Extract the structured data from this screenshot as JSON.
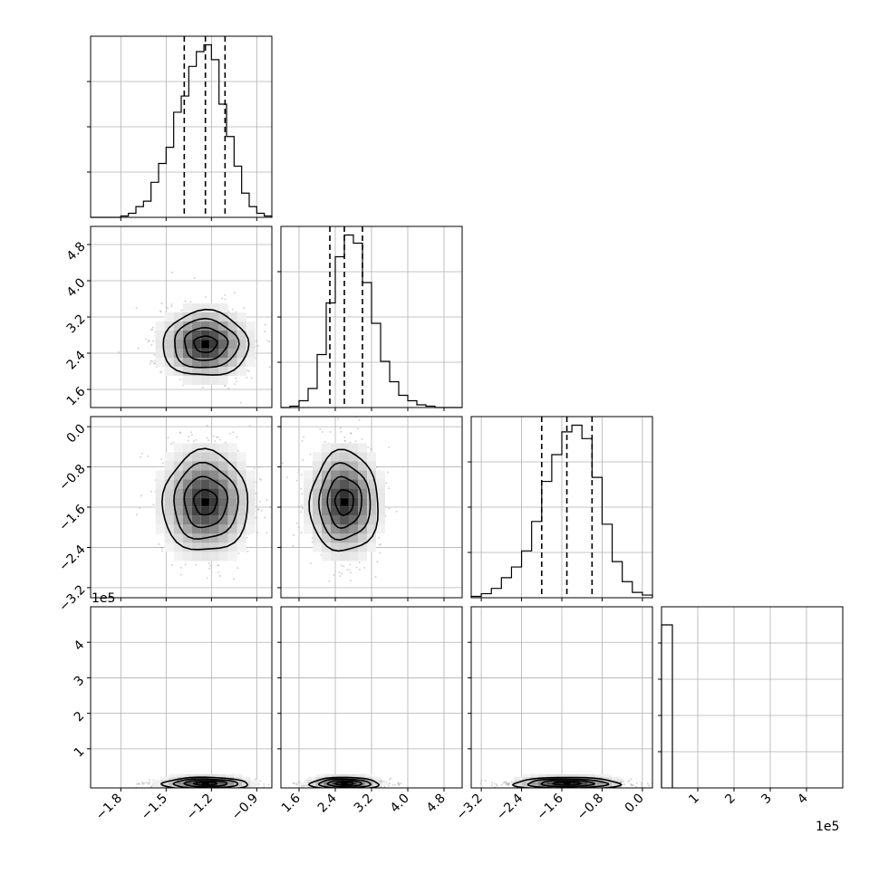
{
  "chart_data": {
    "type": "corner",
    "grid": true,
    "colors": {
      "hist": "#000000",
      "quantile": "#000000",
      "grid": "#b0b0b0",
      "scatter": "#9e9e9e"
    },
    "params": [
      {
        "name": "",
        "range": [
          -2.0,
          -0.8
        ],
        "ticks": [
          -1.8,
          -1.5,
          -1.2,
          -0.9
        ],
        "tick_labels": [
          "−1.8",
          "−1.5",
          "−1.2",
          "−0.9"
        ],
        "quantiles": [
          -1.38,
          -1.24,
          -1.11
        ],
        "hist_bins": [
          -2.0,
          -1.95,
          -1.9,
          -1.85,
          -1.8,
          -1.75,
          -1.7,
          -1.65,
          -1.6,
          -1.55,
          -1.5,
          -1.45,
          -1.4,
          -1.35,
          -1.3,
          -1.25,
          -1.2,
          -1.15,
          -1.1,
          -1.05,
          -1.0,
          -0.95,
          -0.9,
          -0.85,
          -0.8
        ],
        "hist_counts": [
          0,
          0,
          0,
          0,
          1,
          3,
          8,
          12,
          26,
          40,
          52,
          78,
          90,
          112,
          123,
          128,
          117,
          84,
          60,
          38,
          18,
          8,
          3,
          1
        ]
      },
      {
        "name": "",
        "range": [
          1.2,
          5.2
        ],
        "ticks": [
          1.6,
          2.4,
          3.2,
          4.0,
          4.8
        ],
        "tick_labels": [
          "1.6",
          "2.4",
          "3.2",
          "4.0",
          "4.8"
        ],
        "quantiles": [
          2.28,
          2.6,
          3.0
        ],
        "hist_bins": [
          1.2,
          1.4,
          1.6,
          1.8,
          2.0,
          2.2,
          2.4,
          2.6,
          2.8,
          3.0,
          3.2,
          3.4,
          3.6,
          3.8,
          4.0,
          4.2,
          4.4,
          4.6,
          4.8,
          5.0,
          5.2
        ],
        "hist_counts": [
          0,
          1,
          5,
          14,
          39,
          77,
          111,
          127,
          121,
          92,
          62,
          34,
          19,
          9,
          5,
          2,
          1,
          0,
          0,
          0
        ]
      },
      {
        "name": "",
        "range": [
          -3.4,
          0.2
        ],
        "ticks": [
          -3.2,
          -2.4,
          -1.6,
          -0.8,
          0.0
        ],
        "tick_labels": [
          "−3.2",
          "−2.4",
          "−1.6",
          "−0.8",
          "0.0"
        ],
        "quantiles": [
          -2.0,
          -1.5,
          -1.0
        ],
        "hist_bins": [
          -3.4,
          -3.2,
          -3.0,
          -2.8,
          -2.6,
          -2.4,
          -2.2,
          -2.0,
          -1.8,
          -1.6,
          -1.4,
          -1.2,
          -1.0,
          -0.8,
          -0.6,
          -0.4,
          -0.2,
          0.0,
          0.2
        ],
        "hist_counts": [
          1,
          3,
          7,
          15,
          23,
          35,
          57,
          87,
          107,
          124,
          129,
          119,
          90,
          55,
          27,
          12,
          4,
          2
        ]
      },
      {
        "name": "",
        "range": [
          0,
          5
        ],
        "ticks": [
          1,
          2,
          3,
          4
        ],
        "tick_labels": [
          "1",
          "2",
          "3",
          "4"
        ],
        "offset_label": "1e5",
        "quantiles": [],
        "hist_bins": [
          0,
          0.3
        ],
        "hist_counts": [
          4.5
        ],
        "hist_max": 5
      }
    ],
    "y_offset_label": "1e5",
    "scatter_ranges": {
      "3": [
        -0.1,
        5.0
      ]
    }
  }
}
